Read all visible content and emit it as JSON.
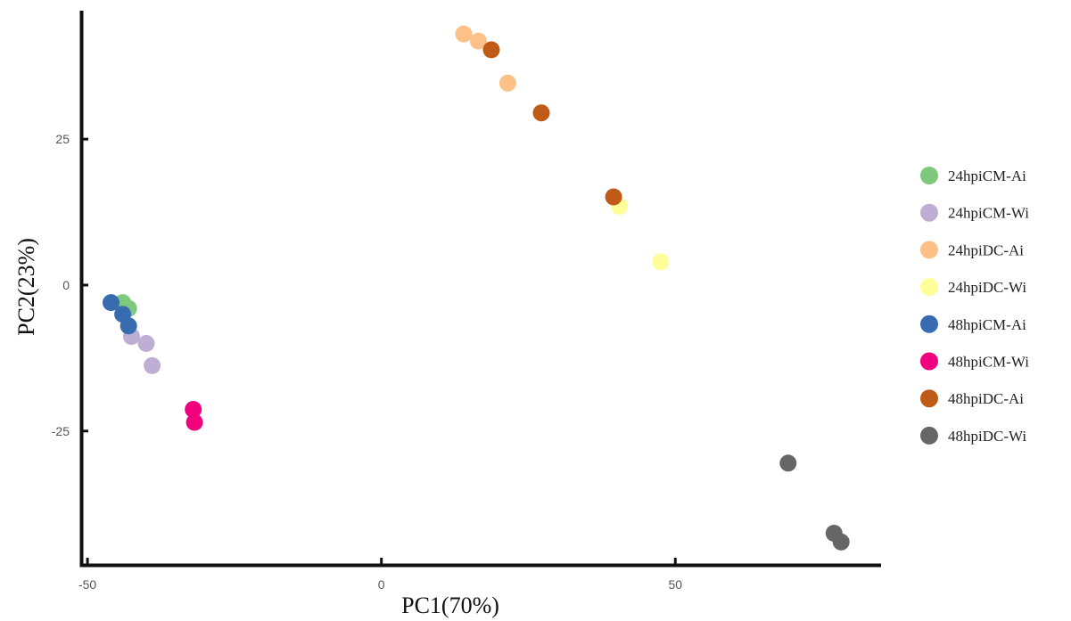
{
  "chart_data": {
    "type": "scatter",
    "title": "",
    "xlabel": "PC1(70%)",
    "ylabel": "PC2(23%)",
    "xlim": [
      -51,
      85
    ],
    "ylim": [
      -48,
      47
    ],
    "xticks": [
      -50,
      0,
      50
    ],
    "xtick_labels": [
      "-50",
      "0",
      "50"
    ],
    "yticks": [
      -25,
      0,
      25
    ],
    "ytick_labels": [
      "-25",
      "0",
      "25"
    ],
    "grid": false,
    "legend_position": "right",
    "series": [
      {
        "name": "24hpiCM-Ai",
        "color": "#7fc97f",
        "points": [
          [
            -44.0,
            -3.0
          ],
          [
            -43.0,
            -4.0
          ]
        ]
      },
      {
        "name": "24hpiCM-Wi",
        "color": "#beaed4",
        "points": [
          [
            -42.5,
            -8.8
          ],
          [
            -40.0,
            -10.0
          ],
          [
            -39.0,
            -13.8
          ]
        ]
      },
      {
        "name": "24hpiDC-Ai",
        "color": "#fdc086",
        "points": [
          [
            14.0,
            43.0
          ],
          [
            16.5,
            41.8
          ],
          [
            21.5,
            34.6
          ]
        ]
      },
      {
        "name": "24hpiDC-Wi",
        "color": "#ffff99",
        "points": [
          [
            40.5,
            13.5
          ],
          [
            47.5,
            4.0
          ]
        ]
      },
      {
        "name": "48hpiCM-Ai",
        "color": "#386cb0",
        "points": [
          [
            -46.0,
            -3.0
          ],
          [
            -44.0,
            -5.0
          ],
          [
            -43.0,
            -7.0
          ]
        ]
      },
      {
        "name": "48hpiCM-Wi",
        "color": "#f0027f",
        "points": [
          [
            -32.0,
            -21.3
          ],
          [
            -31.8,
            -23.5
          ]
        ]
      },
      {
        "name": "48hpiDC-Ai",
        "color": "#bf5b17",
        "points": [
          [
            18.7,
            40.3
          ],
          [
            27.2,
            29.5
          ],
          [
            39.5,
            15.1
          ]
        ]
      },
      {
        "name": "48hpiDC-Wi",
        "color": "#666666",
        "points": [
          [
            69.2,
            -30.5
          ],
          [
            77.0,
            -42.5
          ],
          [
            78.2,
            -44.0
          ]
        ]
      }
    ]
  }
}
